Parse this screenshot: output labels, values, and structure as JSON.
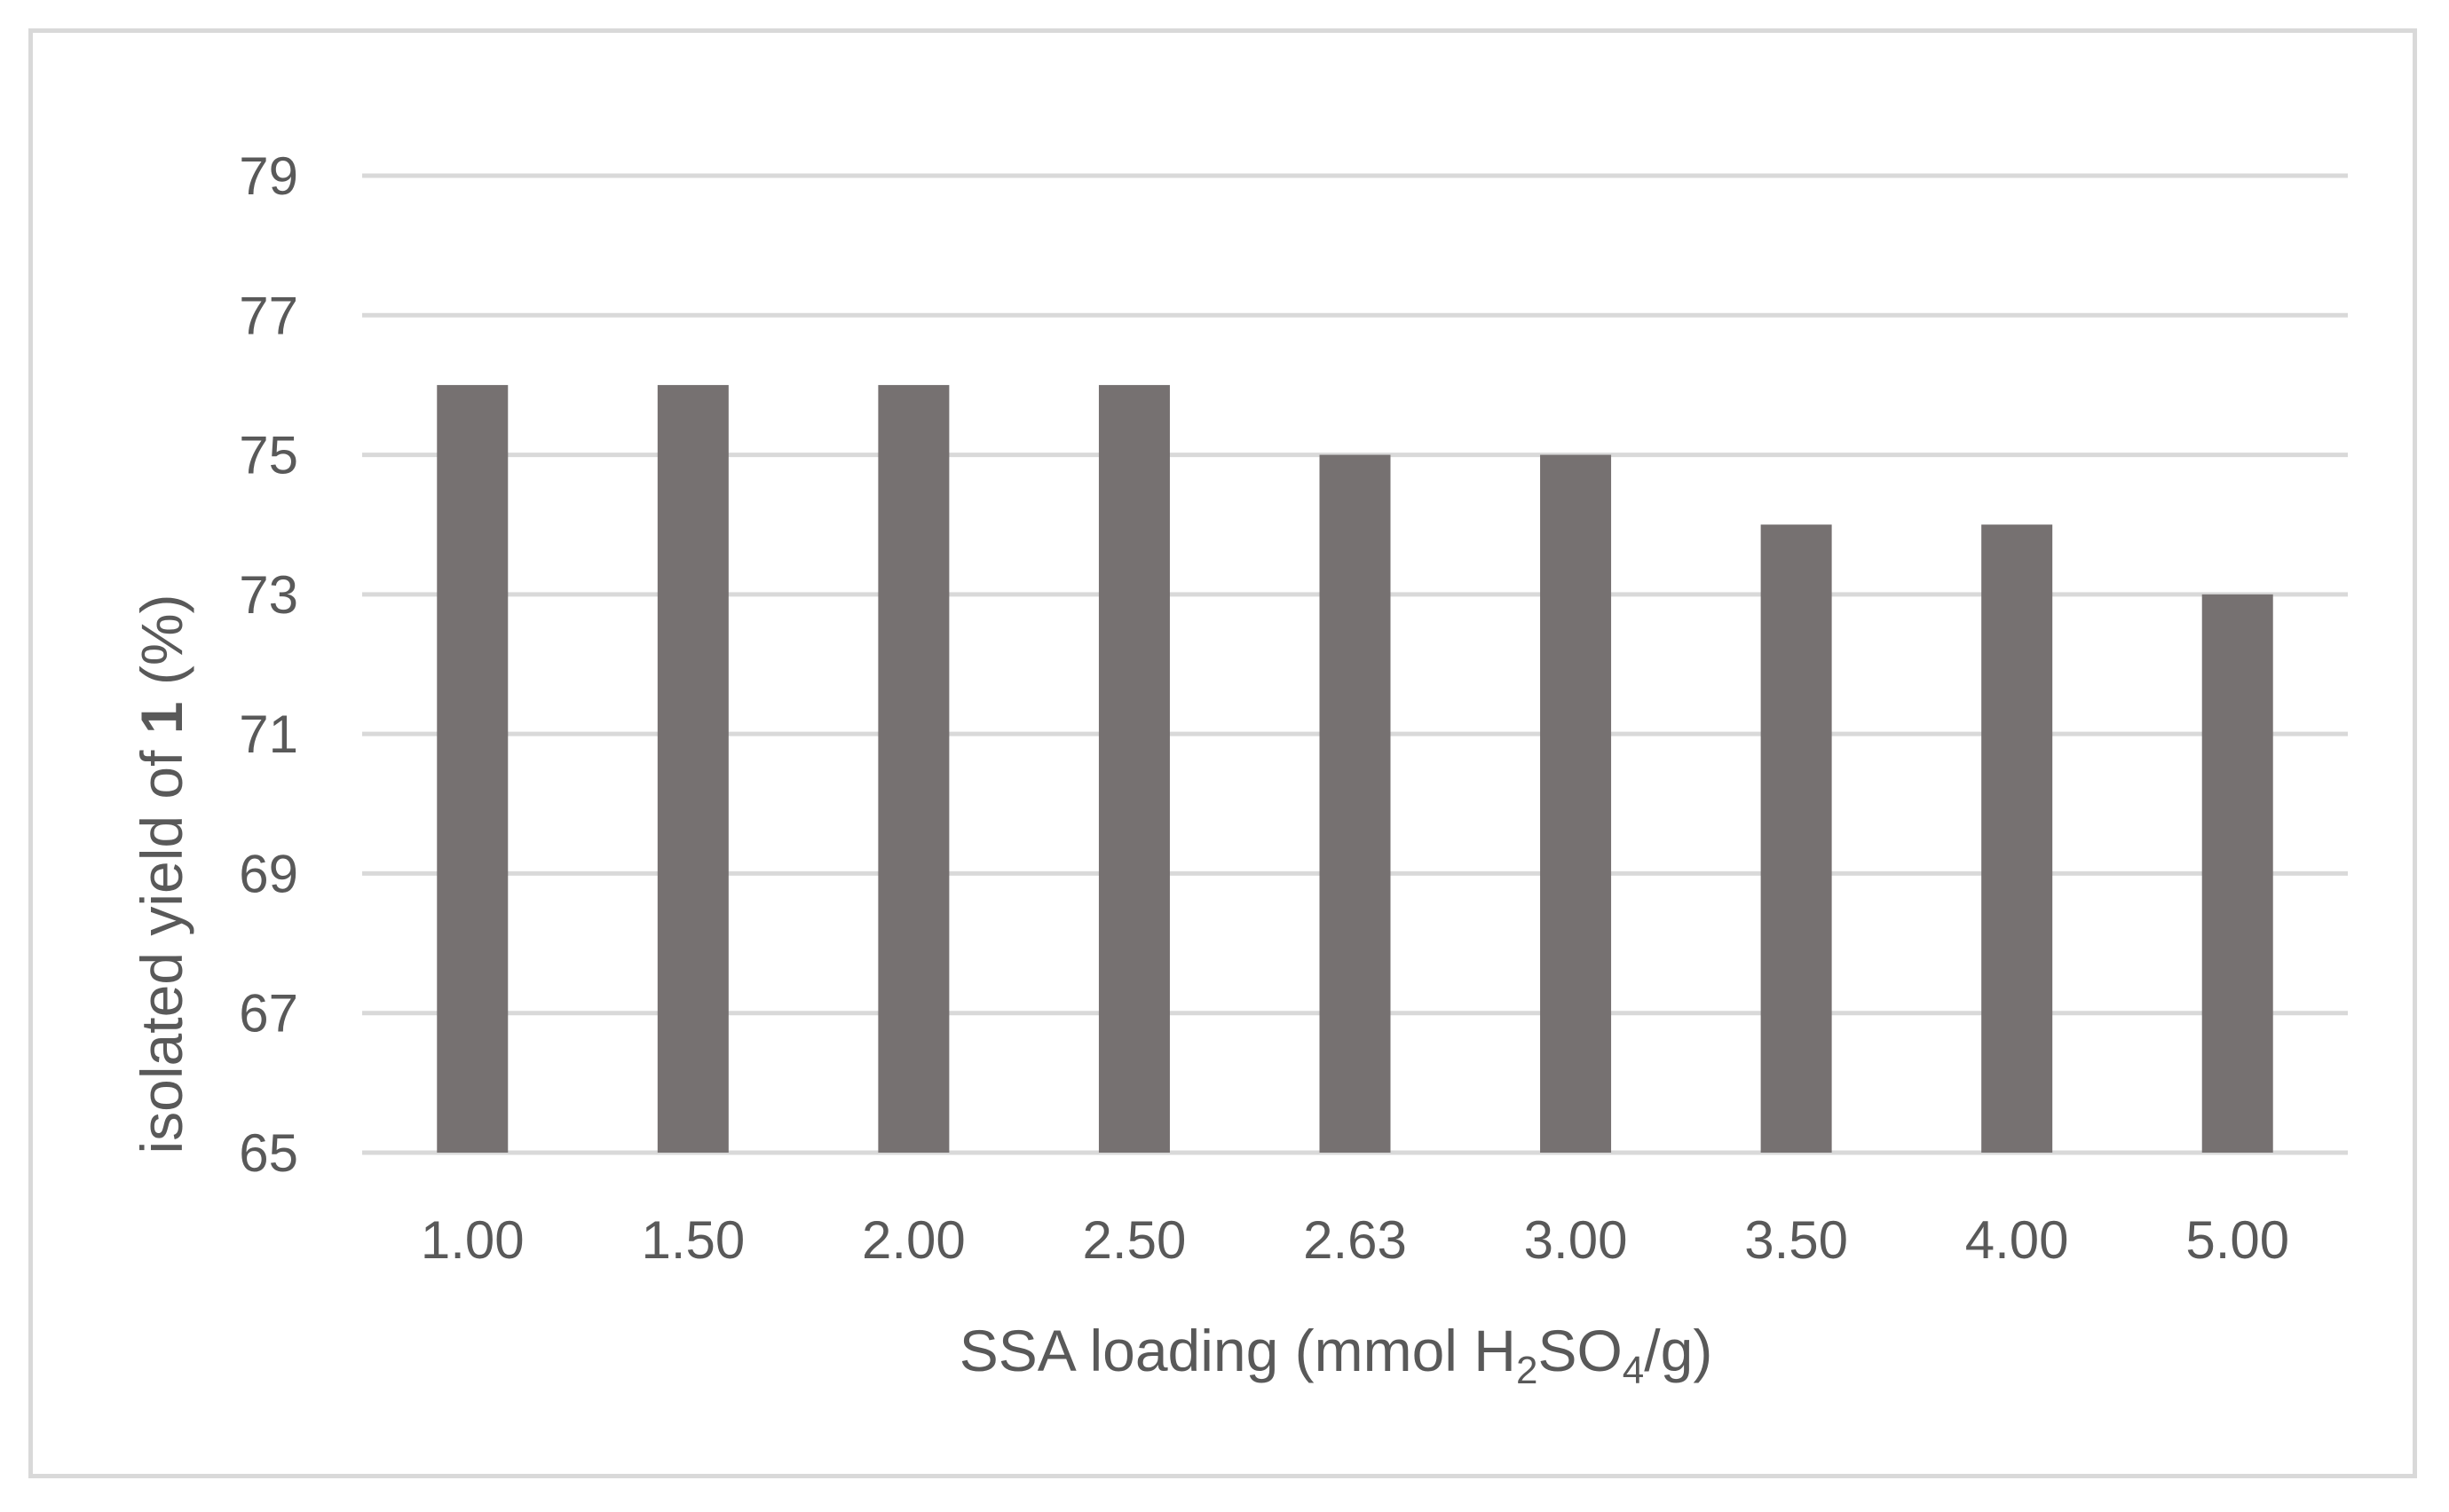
{
  "chart_data": {
    "type": "bar",
    "categories": [
      "1.00",
      "1.50",
      "2.00",
      "2.50",
      "2.63",
      "3.00",
      "3.50",
      "4.00",
      "5.00"
    ],
    "values": [
      76,
      76,
      76,
      76,
      75,
      75,
      74,
      74,
      73
    ],
    "ylim": [
      65,
      79
    ],
    "yticks": [
      "65",
      "67",
      "69",
      "71",
      "73",
      "75",
      "77",
      "79"
    ],
    "xlabel": {
      "part1": "SSA loading (mmol H",
      "sub1": "2",
      "part2": "SO",
      "sub2": "4",
      "part3": "/g)"
    },
    "ylabel": {
      "part1": "isolated yield of ",
      "bold": "1",
      "part2": " (%)"
    },
    "bar_color": "#767171",
    "grid_color": "#d9d9d9",
    "grid": true,
    "legend": "none"
  }
}
